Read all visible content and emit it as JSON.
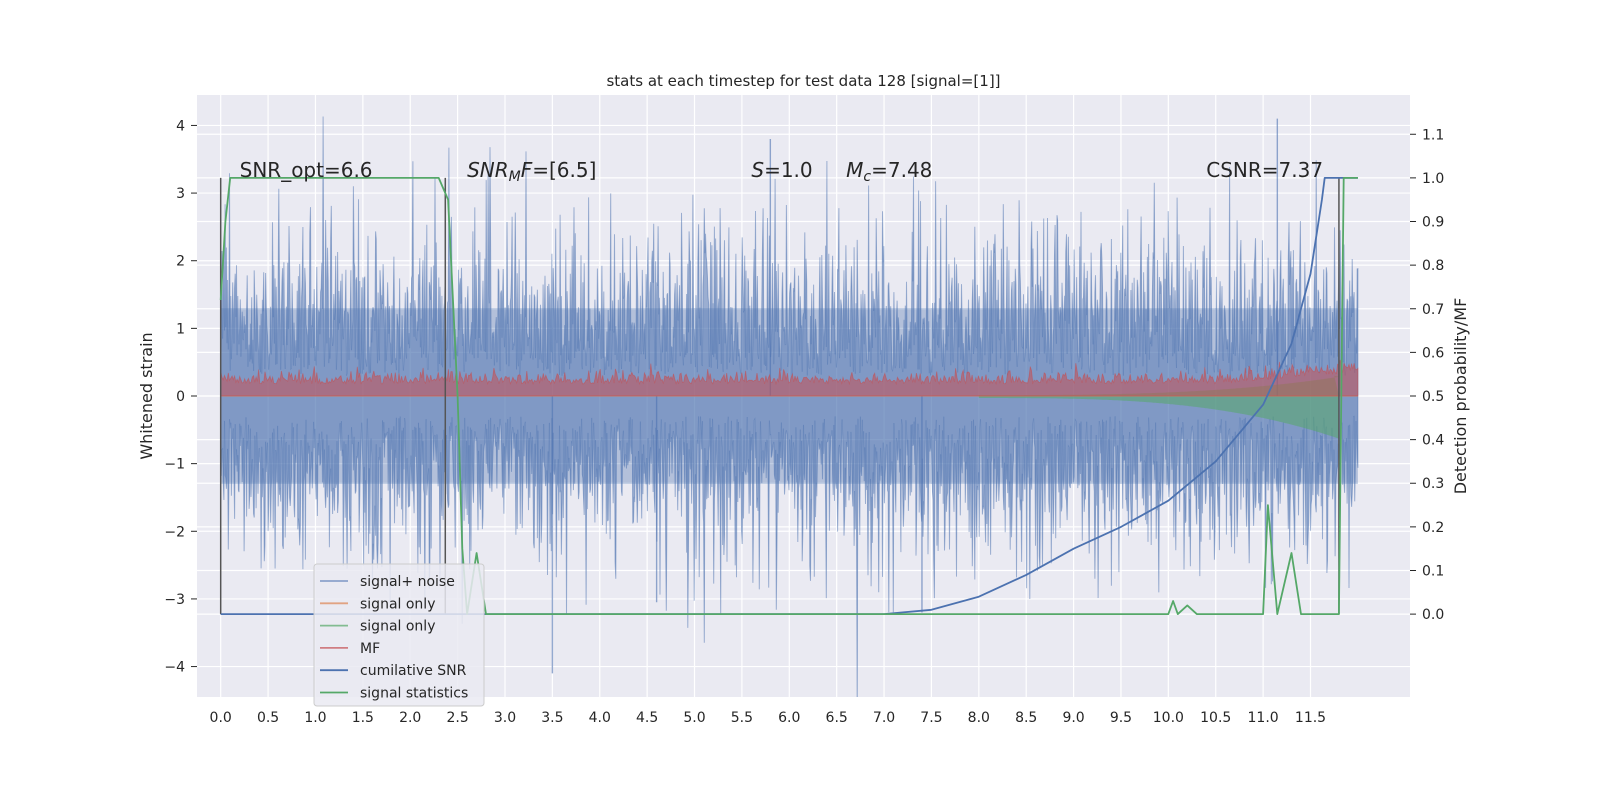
{
  "chart_data": {
    "type": "line",
    "title": "stats at each timestep for test data 128 [signal=[1]]",
    "ylabel": "Whitened strain",
    "y2label": "Detection probability/MF",
    "xlim": [
      -0.25,
      12.55
    ],
    "ylim": [
      -4.45,
      4.45
    ],
    "y2lim": [
      -0.19,
      1.19
    ],
    "xticks": [
      "0.0",
      "0.5",
      "1.0",
      "1.5",
      "2.0",
      "2.5",
      "3.0",
      "3.5",
      "4.0",
      "4.5",
      "5.0",
      "5.5",
      "6.0",
      "6.5",
      "7.0",
      "7.5",
      "8.0",
      "8.5",
      "9.0",
      "9.5",
      "10.0",
      "10.5",
      "11.0",
      "11.5"
    ],
    "yticks": [
      "4",
      "3",
      "2",
      "1",
      "0",
      "−1",
      "−2",
      "−3",
      "−4"
    ],
    "y2ticks": [
      "1.1",
      "1.0",
      "0.9",
      "0.8",
      "0.7",
      "0.6",
      "0.5",
      "0.4",
      "0.3",
      "0.2",
      "0.1",
      "0.0"
    ],
    "grid": true,
    "legend_position": "lower-left",
    "annotations": [
      {
        "parts": [
          {
            "t": "SNR_opt=6.6",
            "i": false
          }
        ],
        "x": 0.2
      },
      {
        "parts": [
          {
            "t": "SNR",
            "i": true
          },
          {
            "t": "M",
            "i": true,
            "sub": true
          },
          {
            "t": "F",
            "i": true
          },
          {
            "t": "=[6.5]",
            "i": false
          }
        ],
        "x": 2.6
      },
      {
        "parts": [
          {
            "t": "S",
            "i": true
          },
          {
            "t": "=1.0",
            "i": false
          }
        ],
        "x": 5.6
      },
      {
        "parts": [
          {
            "t": "M",
            "i": true
          },
          {
            "t": "c",
            "i": true,
            "sub": true
          },
          {
            "t": "=7.48",
            "i": false
          }
        ],
        "x": 6.6
      },
      {
        "parts": [
          {
            "t": "CSNR=7.37",
            "i": false
          }
        ],
        "x": 10.4
      }
    ],
    "vlines": [
      0.0,
      2.37,
      11.8
    ],
    "series": [
      {
        "name": "signal+ noise",
        "color": "#4c72b0",
        "axis": "left",
        "x_range": [
          0,
          12.0
        ],
        "std": 1.0,
        "alpha": 0.5
      },
      {
        "name": "signal only",
        "color": "#dd8452",
        "axis": "left",
        "x_range": [
          0,
          12.0
        ],
        "alpha": 0.5
      },
      {
        "name": "signal only",
        "color": "#55a868",
        "axis": "left",
        "x_range": [
          0,
          12.0
        ],
        "alpha": 0.5
      },
      {
        "name": "MF",
        "color": "#c44e52",
        "axis": "left",
        "x_range": [
          0,
          12.0
        ],
        "alpha": 0.5
      },
      {
        "name": "cumilative SNR",
        "color": "#4c72b0",
        "axis": "right",
        "points": [
          [
            0,
            0
          ],
          [
            7.0,
            0
          ],
          [
            7.5,
            0.01
          ],
          [
            8.0,
            0.04
          ],
          [
            8.5,
            0.09
          ],
          [
            9.0,
            0.15
          ],
          [
            9.5,
            0.2
          ],
          [
            10.0,
            0.26
          ],
          [
            10.5,
            0.35
          ],
          [
            11.0,
            0.48
          ],
          [
            11.3,
            0.62
          ],
          [
            11.5,
            0.78
          ],
          [
            11.62,
            0.95
          ],
          [
            11.65,
            1.0
          ],
          [
            12.0,
            1.0
          ]
        ]
      },
      {
        "name": "signal statistics",
        "color": "#55a868",
        "axis": "right",
        "points": [
          [
            0,
            0.72
          ],
          [
            0.05,
            0.9
          ],
          [
            0.1,
            1.0
          ],
          [
            2.3,
            1.0
          ],
          [
            2.4,
            0.95
          ],
          [
            2.5,
            0.5
          ],
          [
            2.55,
            0.15
          ],
          [
            2.6,
            0
          ],
          [
            2.7,
            0.14
          ],
          [
            2.8,
            0
          ],
          [
            10.0,
            0
          ],
          [
            10.05,
            0.03
          ],
          [
            10.1,
            0
          ],
          [
            10.2,
            0.02
          ],
          [
            10.3,
            0
          ],
          [
            11.0,
            0
          ],
          [
            11.05,
            0.25
          ],
          [
            11.15,
            0
          ],
          [
            11.3,
            0.14
          ],
          [
            11.4,
            0
          ],
          [
            11.8,
            0
          ],
          [
            11.85,
            1.0
          ],
          [
            12.0,
            1.0
          ]
        ]
      }
    ]
  }
}
